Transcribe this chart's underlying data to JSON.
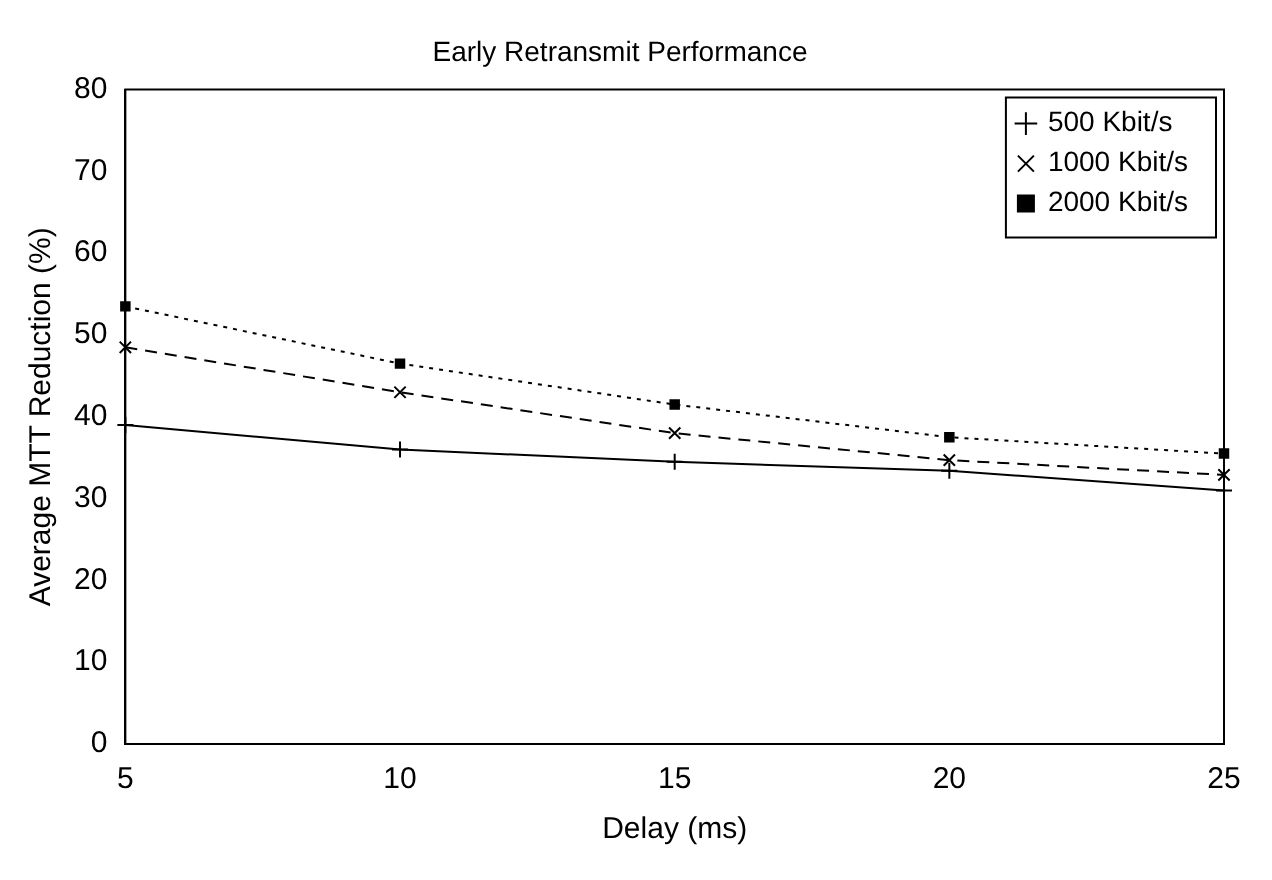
{
  "chart_data": {
    "type": "line",
    "title": "Early Retransmit Performance",
    "xlabel": "Delay (ms)",
    "ylabel": "Average MTT Reduction (%)",
    "x": [
      5,
      10,
      15,
      20,
      25
    ],
    "series": [
      {
        "name": "500 Kbit/s",
        "color": "#000000",
        "values": [
          39,
          36,
          34.5,
          33.4,
          31
        ],
        "marker": "cross",
        "line_style": "solid"
      },
      {
        "name": "1000 Kbit/s",
        "color": "#000000",
        "values": [
          48.5,
          43,
          38,
          34.7,
          32.9
        ],
        "marker": "crossRot",
        "line_style": "dashed"
      },
      {
        "name": "2000 Kbit/s",
        "color": "#000000",
        "values": [
          53.5,
          46.5,
          41.5,
          37.5,
          35.5
        ],
        "marker": "square",
        "line_style": "dotted"
      }
    ],
    "xlim": [
      5,
      25
    ],
    "xticks": [
      5,
      10,
      15,
      20,
      25
    ],
    "ylim": [
      0,
      80
    ],
    "yticks": [
      0,
      10,
      20,
      30,
      40,
      50,
      60,
      70,
      80
    ],
    "grid": false,
    "legend": "top right"
  }
}
